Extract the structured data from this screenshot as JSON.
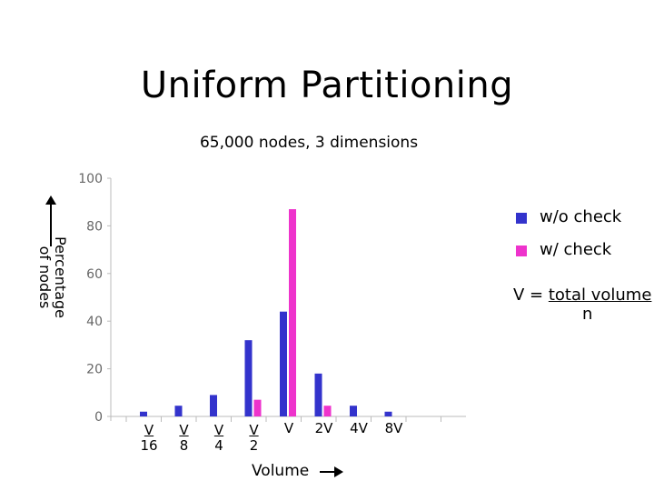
{
  "slide": {
    "title": "Uniform Partitioning"
  },
  "notes": {
    "volume_def_lhs": "V = ",
    "volume_def_num": "total volume",
    "volume_def_den": "n"
  },
  "ylabel_lines": [
    "Percentage",
    "of nodes"
  ],
  "x_axis_label": "Volume",
  "chart_data": {
    "type": "bar",
    "title": "",
    "subtitle": "65,000 nodes, 3 dimensions",
    "xlabel": "Volume",
    "ylabel": "Percentage of nodes",
    "ylim": [
      0,
      100
    ],
    "yticks": [
      0,
      20,
      40,
      60,
      80,
      100
    ],
    "grid": false,
    "legend": "right",
    "categories": [
      "V/16",
      "V/8",
      "V/4",
      "V/2",
      "V",
      "2V",
      "4V",
      "8V"
    ],
    "category_labels": [
      {
        "num": "V",
        "den": "16"
      },
      {
        "num": "V",
        "den": "8"
      },
      {
        "num": "V",
        "den": "4"
      },
      {
        "num": "V",
        "den": "2"
      },
      {
        "text": "V"
      },
      {
        "text": "2V"
      },
      {
        "text": "4V"
      },
      {
        "text": "8V"
      }
    ],
    "series": [
      {
        "name": "w/o check",
        "color": "#3333cc",
        "values": [
          2,
          4.5,
          9,
          32,
          44,
          18,
          4.5,
          2
        ]
      },
      {
        "name": "w/ check",
        "color": "#ee33cc",
        "values": [
          0,
          0,
          0,
          7,
          87,
          4.5,
          0,
          0
        ]
      }
    ]
  }
}
